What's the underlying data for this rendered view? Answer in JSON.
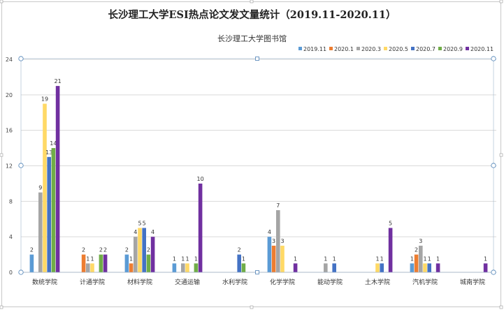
{
  "title": "长沙理工大学ESI热点论文发文量统计（2019.11-2020.11）",
  "subtitle": "长沙理工大学图书馆",
  "colors": [
    "#5b9bd5",
    "#ed7d31",
    "#a5a5a5",
    "#ffd966",
    "#4472c4",
    "#70ad47",
    "#7030a0"
  ],
  "chart_data": {
    "type": "bar",
    "title": "长沙理工大学ESI热点论文发文量统计（2019.11-2020.11）",
    "subtitle": "长沙理工大学图书馆",
    "categories": [
      "数统学院",
      "计通学院",
      "材料学院",
      "交通运输",
      "水利学院",
      "化学学院",
      "能动学院",
      "土木学院",
      "汽机学院",
      "城南学院"
    ],
    "series": [
      {
        "name": "2019.11",
        "values": [
          2,
          0,
          2,
          1,
          0,
          4,
          0,
          0,
          1,
          0
        ]
      },
      {
        "name": "2020.1",
        "values": [
          0,
          2,
          1,
          0,
          0,
          3,
          0,
          0,
          2,
          0
        ]
      },
      {
        "name": "2020.3",
        "values": [
          9,
          1,
          4,
          1,
          0,
          7,
          1,
          0,
          3,
          0
        ]
      },
      {
        "name": "2020.5",
        "values": [
          19,
          1,
          5,
          1,
          0,
          3,
          0,
          1,
          1,
          0
        ]
      },
      {
        "name": "2020.7",
        "values": [
          13,
          0,
          5,
          0,
          2,
          0,
          1,
          1,
          1,
          0
        ]
      },
      {
        "name": "2020.9",
        "values": [
          14,
          2,
          2,
          1,
          1,
          0,
          0,
          0,
          0,
          0
        ]
      },
      {
        "name": "2020.11",
        "values": [
          21,
          2,
          4,
          10,
          0,
          1,
          0,
          5,
          1,
          1
        ]
      }
    ],
    "yticks": [
      0,
      4,
      8,
      12,
      16,
      20,
      24
    ],
    "ylim": [
      0,
      24
    ],
    "grid": true,
    "legend": "top-right"
  }
}
